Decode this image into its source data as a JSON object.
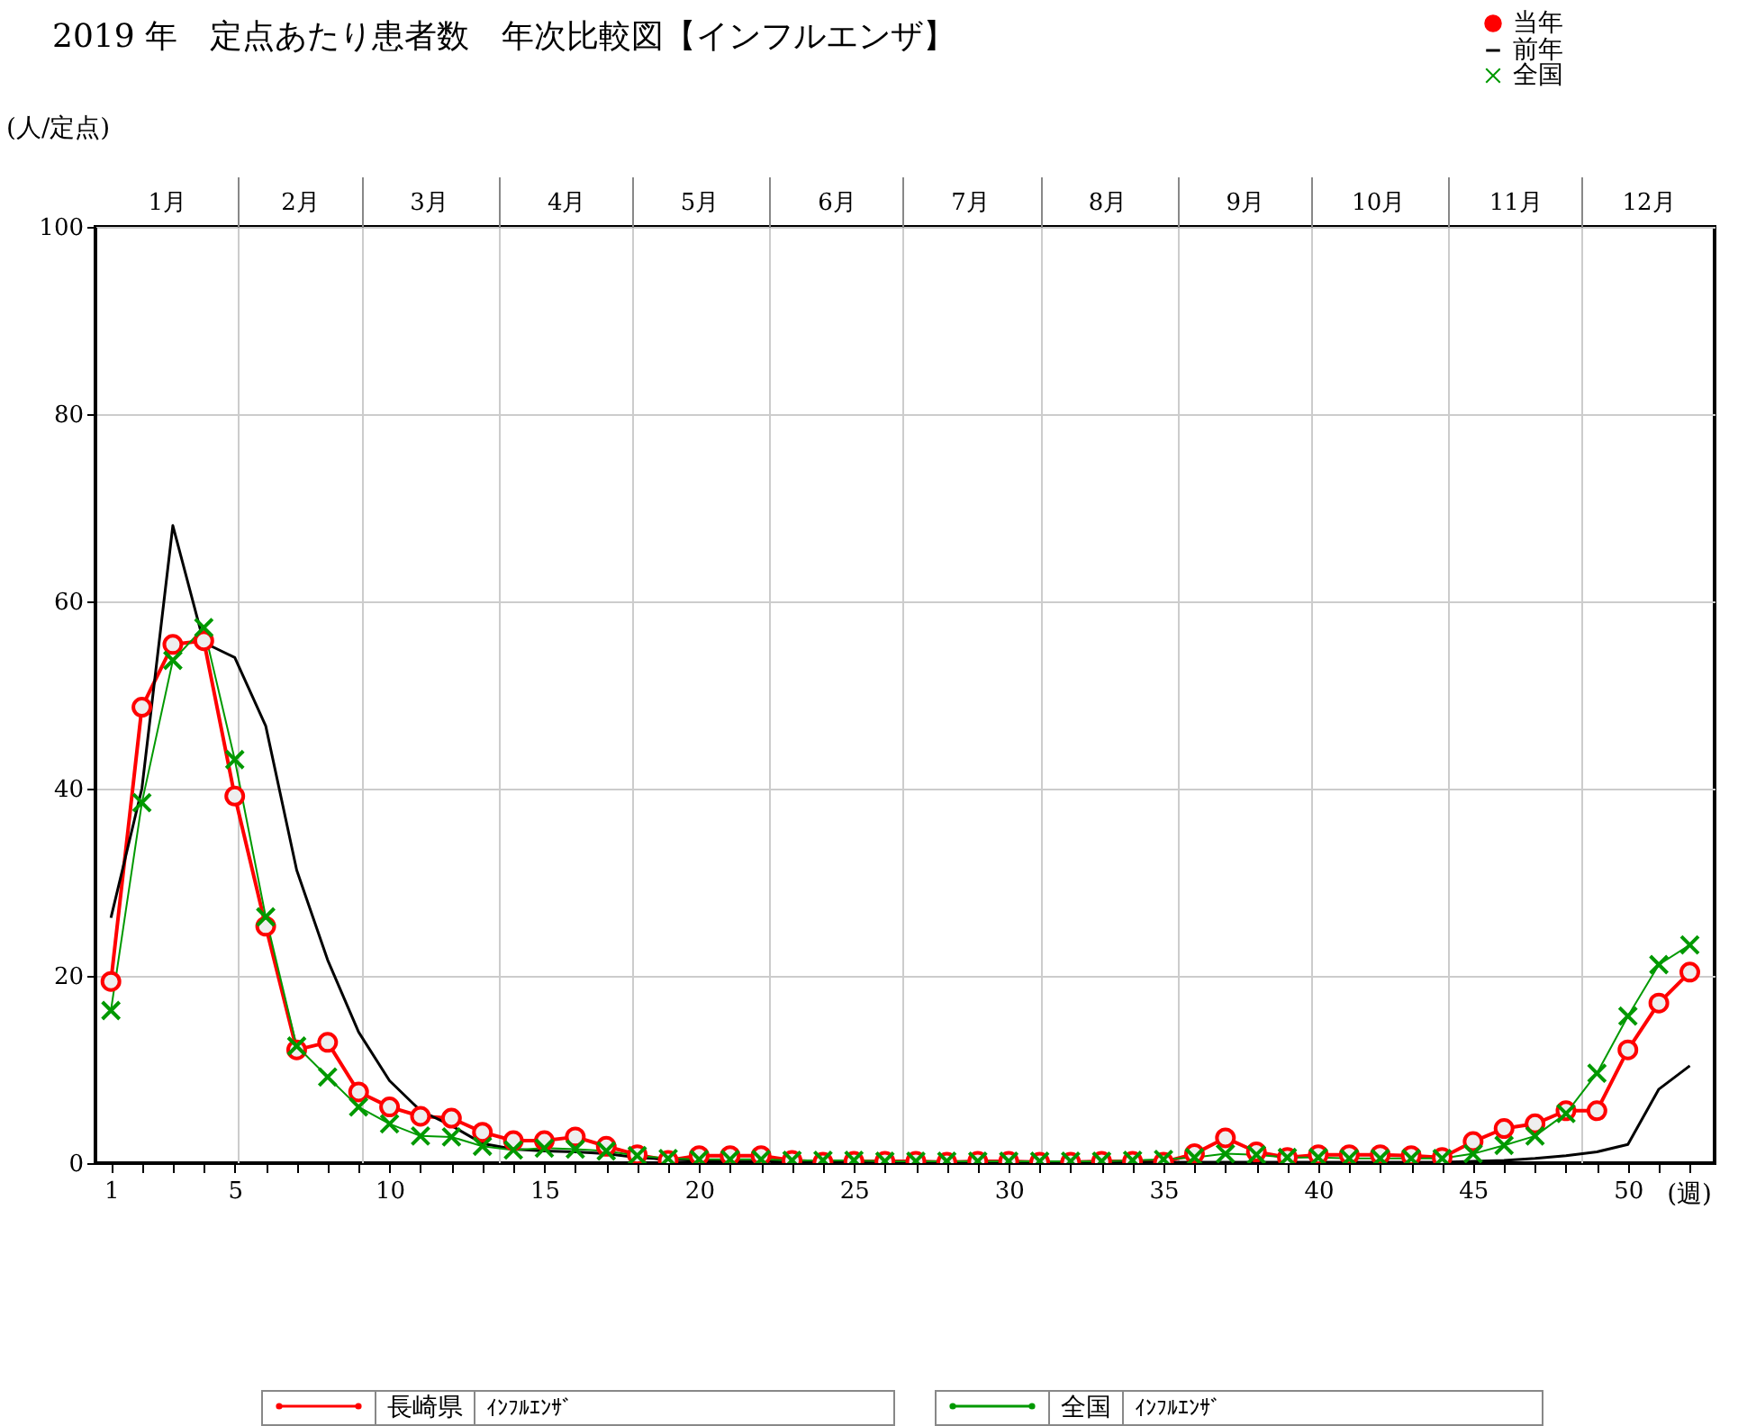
{
  "chart_data": {
    "type": "line",
    "title": "2019 年　定点あたり患者数　年次比較図【インフルエンザ】",
    "xlabel": "(週)",
    "ylabel": "(人/定点)",
    "x": [
      1,
      2,
      3,
      4,
      5,
      6,
      7,
      8,
      9,
      10,
      11,
      12,
      13,
      14,
      15,
      16,
      17,
      18,
      19,
      20,
      21,
      22,
      23,
      24,
      25,
      26,
      27,
      28,
      29,
      30,
      31,
      32,
      33,
      34,
      35,
      36,
      37,
      38,
      39,
      40,
      41,
      42,
      43,
      44,
      45,
      46,
      47,
      48,
      49,
      50,
      51,
      52
    ],
    "series": [
      {
        "name": "当年",
        "color": "#ff0000",
        "marker": "circle",
        "values": [
          19.4,
          48.7,
          55.4,
          55.8,
          39.2,
          25.3,
          12.1,
          12.9,
          7.6,
          6.0,
          5.0,
          4.8,
          3.3,
          2.4,
          2.4,
          2.8,
          1.8,
          0.9,
          0.3,
          0.8,
          0.8,
          0.8,
          0.3,
          0.1,
          0.2,
          0.2,
          0.2,
          0.1,
          0.2,
          0.2,
          0.1,
          0.1,
          0.2,
          0.2,
          0.1,
          1.0,
          2.7,
          1.2,
          0.6,
          0.9,
          0.9,
          0.9,
          0.8,
          0.6,
          2.3,
          3.7,
          4.2,
          5.6,
          5.6,
          12.1,
          17.1,
          20.4
        ]
      },
      {
        "name": "前年",
        "color": "#000000",
        "marker": "none",
        "values": [
          26.2,
          40.0,
          68.1,
          55.6,
          54.0,
          46.7,
          31.3,
          21.7,
          14.0,
          8.8,
          5.6,
          4.0,
          2.1,
          1.5,
          1.3,
          1.2,
          1.0,
          0.6,
          0.4,
          0.3,
          0.2,
          0.2,
          0.1,
          0.1,
          0.1,
          0.1,
          0.1,
          0.1,
          0.1,
          0.1,
          0.1,
          0.1,
          0.1,
          0.1,
          0.1,
          0.1,
          0.1,
          0.1,
          0.1,
          0.1,
          0.1,
          0.1,
          0.1,
          0.1,
          0.2,
          0.3,
          0.5,
          0.8,
          1.2,
          2.0,
          7.9,
          10.4
        ]
      },
      {
        "name": "全国",
        "color": "#009900",
        "marker": "cross",
        "values": [
          16.3,
          38.5,
          53.7,
          57.2,
          43.1,
          26.3,
          12.5,
          9.2,
          6.0,
          4.2,
          2.9,
          2.8,
          1.8,
          1.4,
          1.6,
          1.5,
          1.3,
          0.8,
          0.5,
          0.4,
          0.4,
          0.4,
          0.3,
          0.3,
          0.3,
          0.2,
          0.2,
          0.2,
          0.2,
          0.2,
          0.2,
          0.2,
          0.2,
          0.3,
          0.4,
          0.6,
          1.0,
          0.9,
          0.6,
          0.6,
          0.5,
          0.5,
          0.5,
          0.5,
          1.0,
          1.9,
          2.9,
          5.3,
          9.6,
          15.7,
          21.2,
          23.3
        ]
      }
    ],
    "xlim": [
      0.5,
      52.8
    ],
    "xticks": [
      1,
      {
        "value": 2,
        "label": null
      },
      {
        "value": 3,
        "label": null
      },
      {
        "value": 4,
        "label": null
      },
      5,
      {
        "value": 6,
        "label": null
      },
      {
        "value": 7,
        "label": null
      },
      {
        "value": 8,
        "label": null
      },
      {
        "value": 9,
        "label": null
      },
      10,
      {
        "value": 11,
        "label": null
      },
      {
        "value": 12,
        "label": null
      },
      {
        "value": 13,
        "label": null
      },
      {
        "value": 14,
        "label": null
      },
      15,
      {
        "value": 16,
        "label": null
      },
      {
        "value": 17,
        "label": null
      },
      {
        "value": 18,
        "label": null
      },
      {
        "value": 19,
        "label": null
      },
      20,
      {
        "value": 21,
        "label": null
      },
      {
        "value": 22,
        "label": null
      },
      {
        "value": 23,
        "label": null
      },
      {
        "value": 24,
        "label": null
      },
      25,
      {
        "value": 26,
        "label": null
      },
      {
        "value": 27,
        "label": null
      },
      {
        "value": 28,
        "label": null
      },
      {
        "value": 29,
        "label": null
      },
      30,
      {
        "value": 31,
        "label": null
      },
      {
        "value": 32,
        "label": null
      },
      {
        "value": 33,
        "label": null
      },
      {
        "value": 34,
        "label": null
      },
      35,
      {
        "value": 36,
        "label": null
      },
      {
        "value": 37,
        "label": null
      },
      {
        "value": 38,
        "label": null
      },
      {
        "value": 39,
        "label": null
      },
      40,
      {
        "value": 41,
        "label": null
      },
      {
        "value": 42,
        "label": null
      },
      {
        "value": 43,
        "label": null
      },
      {
        "value": 44,
        "label": null
      },
      45,
      {
        "value": 46,
        "label": null
      },
      {
        "value": 47,
        "label": null
      },
      {
        "value": 48,
        "label": null
      },
      {
        "value": 49,
        "label": null
      },
      50,
      {
        "value": 51,
        "label": null
      },
      {
        "value": 52,
        "label": null
      }
    ],
    "x2lim": [
      "2018-12-31",
      "2019-12-31"
    ],
    "x2ticks": [
      {
        "value": "2019-01-16",
        "label": "1月"
      },
      {
        "value": "2019-02-01",
        "label": null
      },
      {
        "value": "2019-02-15",
        "label": "2月"
      },
      {
        "value": "2019-03-01",
        "label": null
      },
      {
        "value": "2019-03-16",
        "label": "3月"
      },
      {
        "value": "2019-04-01",
        "label": null
      },
      {
        "value": "2019-04-16",
        "label": "4月"
      },
      {
        "value": "2019-05-01",
        "label": null
      },
      {
        "value": "2019-05-16",
        "label": "5月"
      },
      {
        "value": "2019-06-01",
        "label": null
      },
      {
        "value": "2019-06-16",
        "label": "6月"
      },
      {
        "value": "2019-07-01",
        "label": null
      },
      {
        "value": "2019-07-16",
        "label": "7月"
      },
      {
        "value": "2019-08-01",
        "label": null
      },
      {
        "value": "2019-08-16",
        "label": "8月"
      },
      {
        "value": "2019-09-01",
        "label": null
      },
      {
        "value": "2019-09-16",
        "label": "9月"
      },
      {
        "value": "2019-10-01",
        "label": null
      },
      {
        "value": "2019-10-16",
        "label": "10月"
      },
      {
        "value": "2019-11-01",
        "label": null
      },
      {
        "value": "2019-11-16",
        "label": "11月"
      },
      {
        "value": "2019-12-01",
        "label": null
      },
      {
        "value": "2019-12-16",
        "label": "12月"
      }
    ],
    "ylim": [
      0,
      100
    ],
    "yticks": [
      0,
      20,
      40,
      60,
      80,
      100
    ],
    "grid": true,
    "legend": "top right",
    "annotations": [
      "長崎県",
      "ｲﾝﾌﾙｴﾝｻﾞ",
      "全国",
      "ｲﾝﾌﾙｴﾝｻﾞ"
    ]
  }
}
